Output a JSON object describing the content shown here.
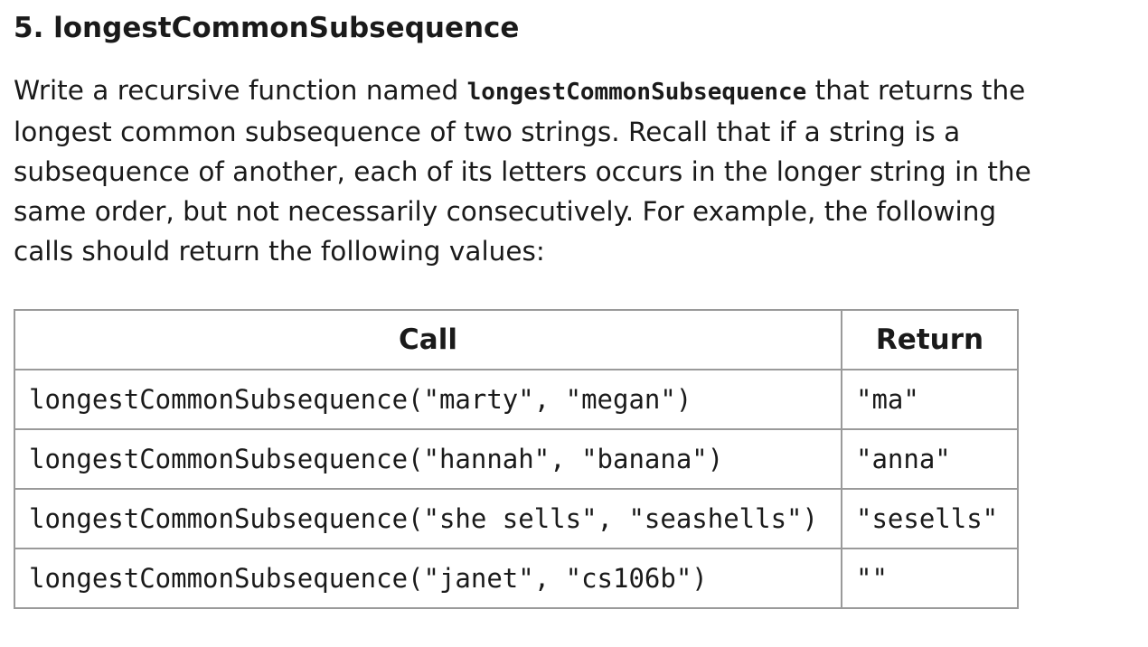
{
  "heading": "5. longestCommonSubsequence",
  "description": {
    "line1_before": "Write a recursive function named ",
    "line1_code": "longestCommonSubsequence",
    "line1_after": " that returns the",
    "line2": "longest common subsequence of two strings. Recall that if a string is a",
    "line3": "subsequence of another, each of its letters occurs in the longer string in the",
    "line4": "same order, but not necessarily consecutively. For example, the following",
    "line5": "calls should return the following values:"
  },
  "table": {
    "headers": [
      "Call",
      "Return"
    ],
    "rows": [
      {
        "call": "longestCommonSubsequence(\"marty\", \"megan\")",
        "ret": "\"ma\""
      },
      {
        "call": "longestCommonSubsequence(\"hannah\", \"banana\")",
        "ret": "\"anna\""
      },
      {
        "call": "longestCommonSubsequence(\"she sells\", \"seashells\")",
        "ret": "\"sesells\""
      },
      {
        "call": "longestCommonSubsequence(\"janet\", \"cs106b\")",
        "ret": "\"\""
      }
    ]
  }
}
